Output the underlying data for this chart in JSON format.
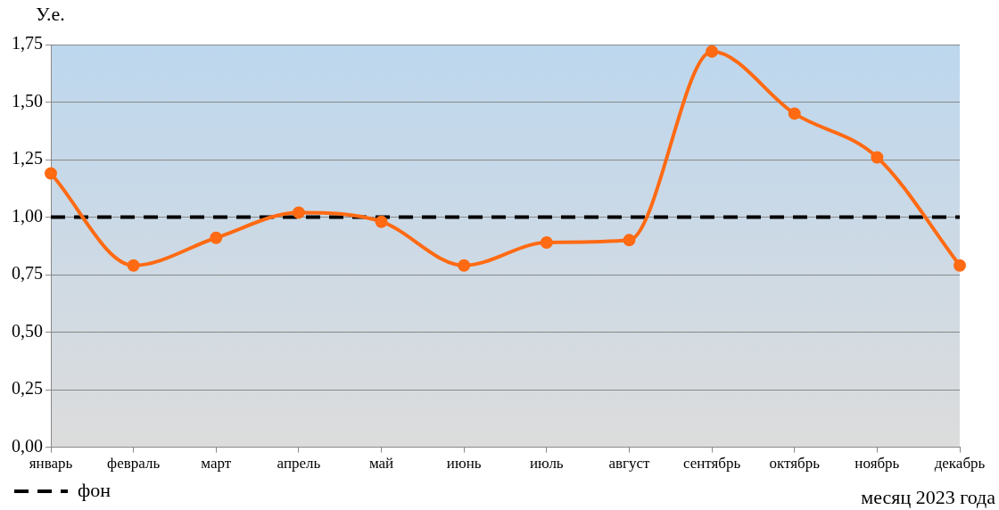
{
  "chart_data": {
    "type": "line",
    "xlabel": "месяц 2023 года",
    "ylabel": "У.е.",
    "categories": [
      "январь",
      "февраль",
      "март",
      "апрель",
      "май",
      "июнь",
      "июль",
      "август",
      "сентябрь",
      "октябрь",
      "ноябрь",
      "декабрь"
    ],
    "series": [
      {
        "color": "#ff6a13",
        "values": [
          1.19,
          0.79,
          0.91,
          1.02,
          0.98,
          0.79,
          0.89,
          0.9,
          1.72,
          1.45,
          1.26,
          0.79
        ]
      }
    ],
    "ylim": [
      0,
      1.75
    ],
    "yticks": [
      {
        "value": 0,
        "label": "0,00"
      },
      {
        "value": 0.25,
        "label": "0,25"
      },
      {
        "value": 0.5,
        "label": "0,50"
      },
      {
        "value": 0.75,
        "label": "0,75"
      },
      {
        "value": 1,
        "label": "1,00"
      },
      {
        "value": 1.25,
        "label": "1,25"
      },
      {
        "value": 1.5,
        "label": "1,50"
      },
      {
        "value": 1.75,
        "label": "1,75"
      }
    ],
    "ref_lines": [
      {
        "axis": "y",
        "value": 1,
        "label": "фон",
        "color": "#000000",
        "line_style": "dashed"
      }
    ],
    "grid": "y",
    "legend": "bottom left",
    "marker": "circle",
    "line_style": "solid"
  }
}
